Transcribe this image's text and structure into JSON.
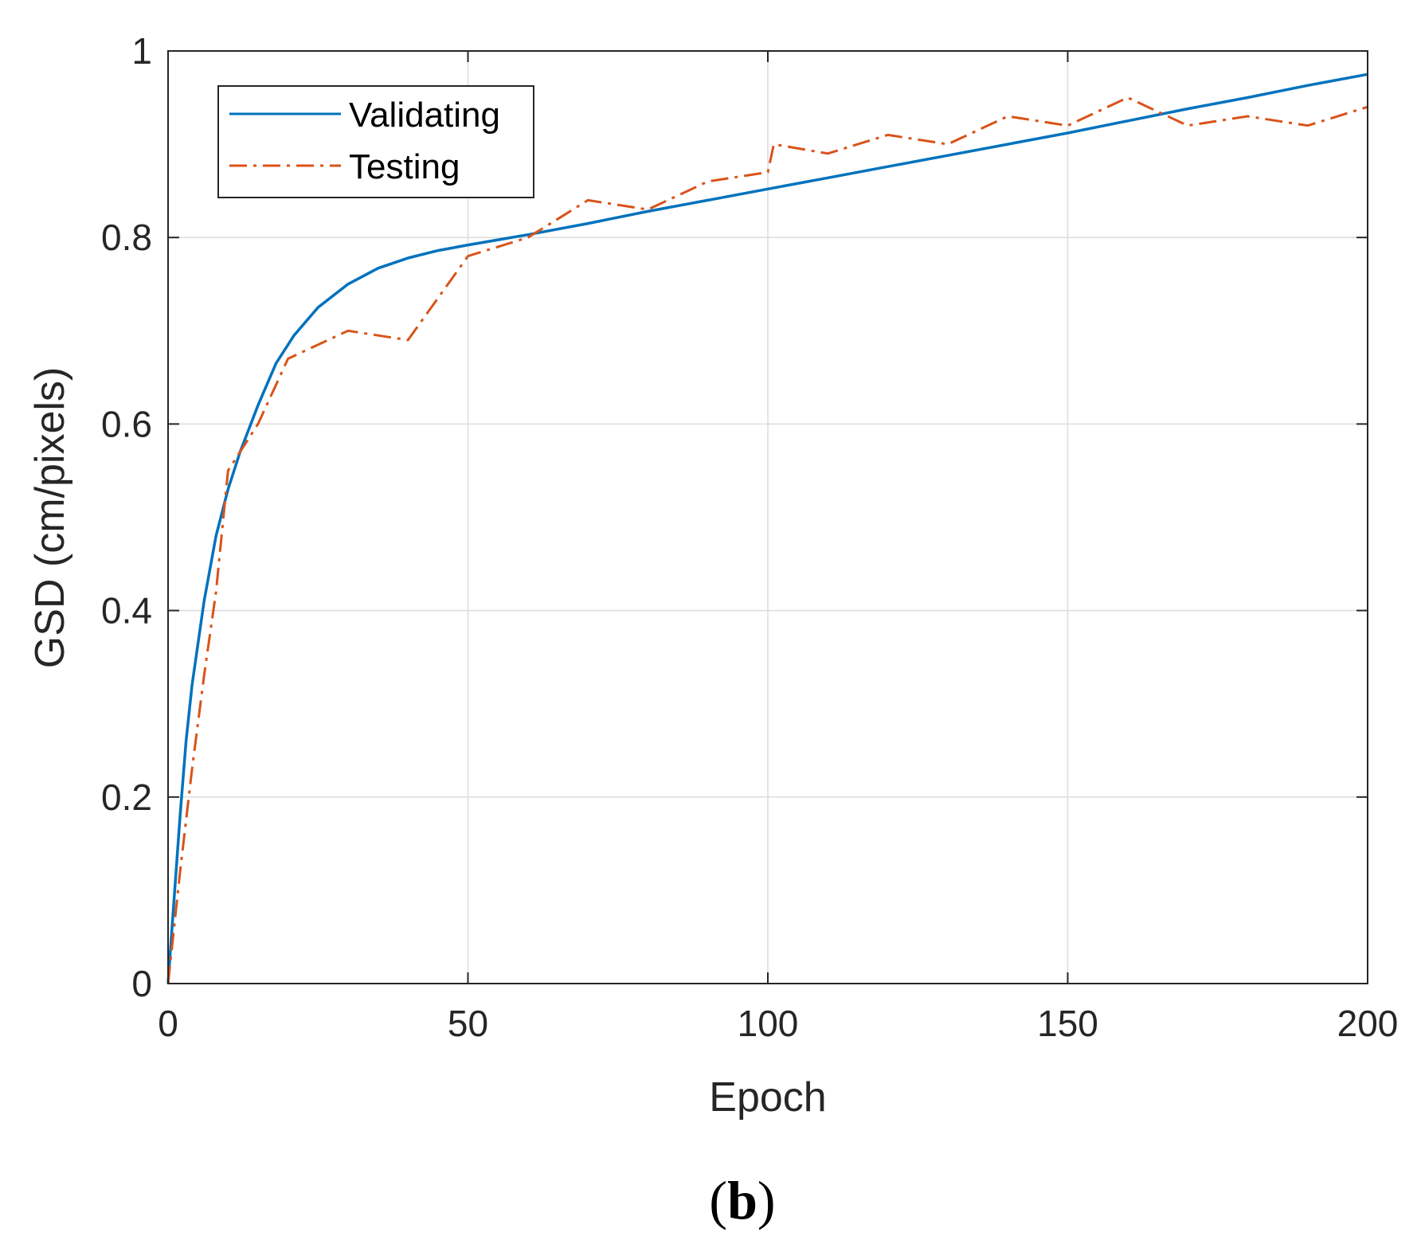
{
  "chart_data": {
    "type": "line",
    "xlabel": "Epoch",
    "ylabel": "GSD (cm/pixels)",
    "xlim": [
      0,
      200
    ],
    "ylim": [
      0,
      1
    ],
    "xticks": [
      0,
      50,
      100,
      150,
      200
    ],
    "yticks": [
      0,
      0.2,
      0.4,
      0.6,
      0.8,
      1
    ],
    "xtick_labels": [
      "0",
      "50",
      "100",
      "150",
      "200"
    ],
    "ytick_labels": [
      "0",
      "0.2",
      "0.4",
      "0.6",
      "0.8",
      "1"
    ],
    "grid": true,
    "legend_position": "top-left",
    "series": [
      {
        "name": "Validating",
        "style": "solid",
        "color": "#0072BD",
        "x": [
          0,
          1,
          2,
          3,
          4,
          6,
          8,
          10,
          12,
          15,
          18,
          21,
          25,
          30,
          35,
          40,
          45,
          50,
          60,
          70,
          80,
          90,
          100,
          110,
          120,
          130,
          140,
          150,
          160,
          170,
          180,
          190,
          200
        ],
        "y": [
          0.0,
          0.09,
          0.18,
          0.26,
          0.32,
          0.41,
          0.48,
          0.53,
          0.57,
          0.62,
          0.665,
          0.695,
          0.725,
          0.75,
          0.767,
          0.778,
          0.786,
          0.792,
          0.803,
          0.815,
          0.828,
          0.84,
          0.852,
          0.864,
          0.876,
          0.888,
          0.9,
          0.912,
          0.925,
          0.938,
          0.95,
          0.963,
          0.975
        ]
      },
      {
        "name": "Testing",
        "style": "dash-dot",
        "color": "#D95319",
        "x": [
          0,
          2,
          4,
          6,
          8,
          10,
          15,
          20,
          30,
          40,
          50,
          60,
          70,
          80,
          90,
          100,
          101,
          110,
          120,
          130,
          140,
          150,
          160,
          170,
          180,
          190,
          200
        ],
        "y": [
          0.0,
          0.12,
          0.23,
          0.33,
          0.42,
          0.55,
          0.6,
          0.67,
          0.7,
          0.69,
          0.78,
          0.8,
          0.84,
          0.83,
          0.86,
          0.87,
          0.9,
          0.89,
          0.91,
          0.9,
          0.93,
          0.92,
          0.95,
          0.92,
          0.93,
          0.92,
          0.94
        ]
      }
    ]
  },
  "caption": {
    "open": "(",
    "letter": "b",
    "close": ")"
  }
}
